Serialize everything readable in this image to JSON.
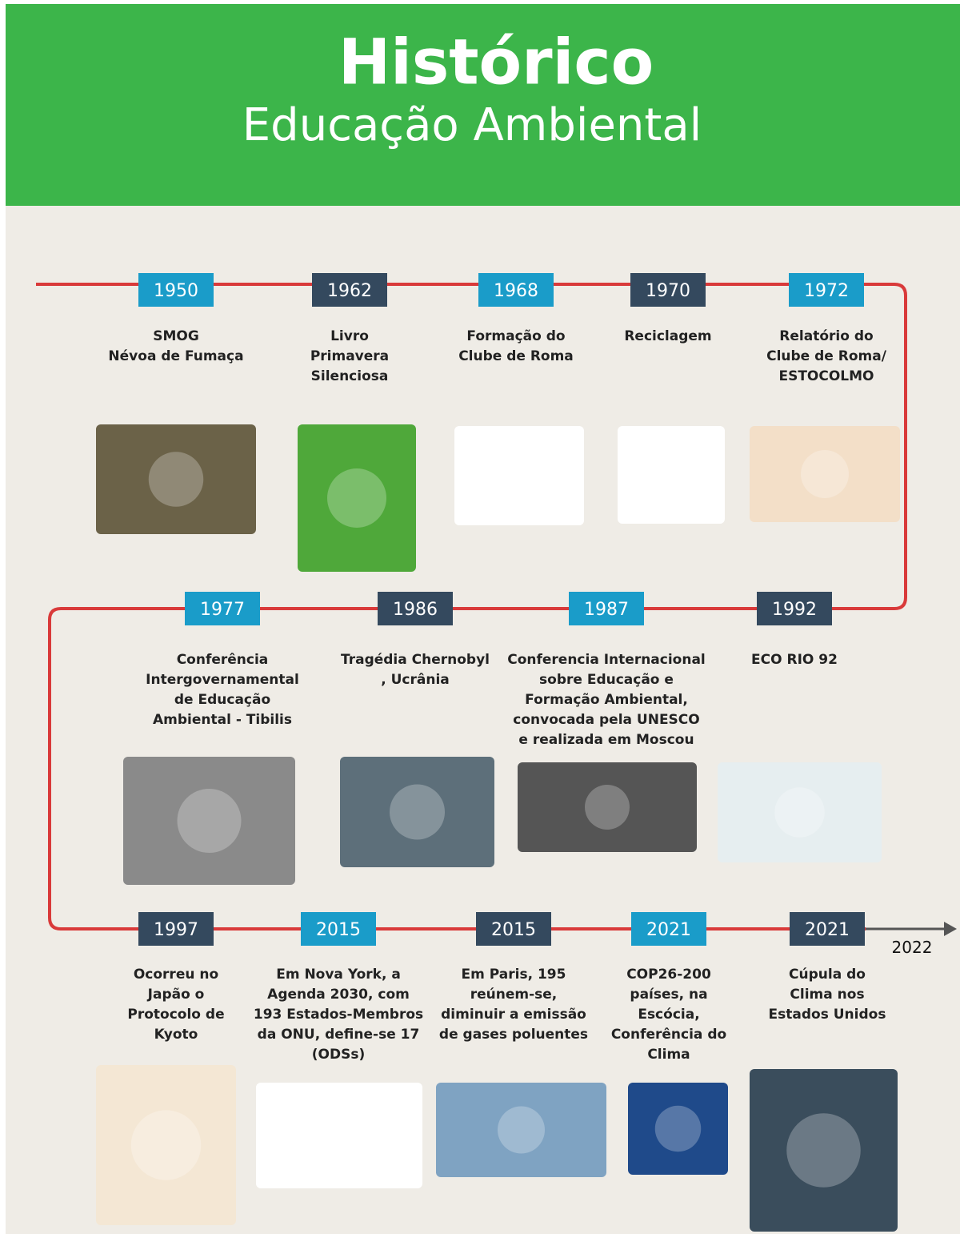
{
  "header": {
    "title": "Histórico",
    "subtitle": "Educação Ambiental"
  },
  "timeline": {
    "rows": [
      [
        {
          "year": "1950",
          "lines": [
            "SMOG",
            "Névoa de Fumaça"
          ]
        },
        {
          "year": "1962",
          "lines": [
            "Livro",
            "Primavera",
            "Silenciosa"
          ]
        },
        {
          "year": "1968",
          "lines": [
            "Formação do",
            "Clube de Roma"
          ]
        },
        {
          "year": "1970",
          "lines": [
            "Reciclagem"
          ]
        },
        {
          "year": "1972",
          "lines": [
            "Relatório do",
            "Clube de Roma/",
            "ESTOCOLMO"
          ]
        }
      ],
      [
        {
          "year": "1977",
          "lines": [
            "Conferência",
            "Intergovernamental",
            "de Educação",
            "Ambiental - Tibilis"
          ]
        },
        {
          "year": "1986",
          "lines": [
            "Tragédia Chernobyl",
            ", Ucrânia"
          ]
        },
        {
          "year": "1987",
          "lines": [
            "Conferencia Internacional",
            "sobre Educação e",
            "Formação Ambiental,",
            "convocada pela UNESCO",
            "e realizada em Moscou"
          ]
        },
        {
          "year": "1992",
          "lines": [
            "ECO RIO 92"
          ]
        }
      ],
      [
        {
          "year": "1997",
          "lines": [
            "Ocorreu no",
            "Japão o",
            "Protocolo de",
            "Kyoto"
          ]
        },
        {
          "year": "2015",
          "lines": [
            "Em Nova York, a",
            "Agenda 2030, com",
            "193 Estados-Membros",
            "da ONU, define-se 17",
            "(ODSs)"
          ]
        },
        {
          "year": "2015",
          "lines": [
            "Em Paris, 195",
            "reúnem-se,",
            "diminuir a emissão",
            "de gases poluentes"
          ]
        },
        {
          "year": "2021",
          "lines": [
            "COP26-200",
            "países, na",
            "Escócia,",
            "Conferência do",
            "Clima"
          ]
        },
        {
          "year": "2021",
          "lines": [
            "Cúpula do",
            "Clima nos",
            "Estados Unidos"
          ]
        }
      ]
    ],
    "end_year": "2022"
  }
}
